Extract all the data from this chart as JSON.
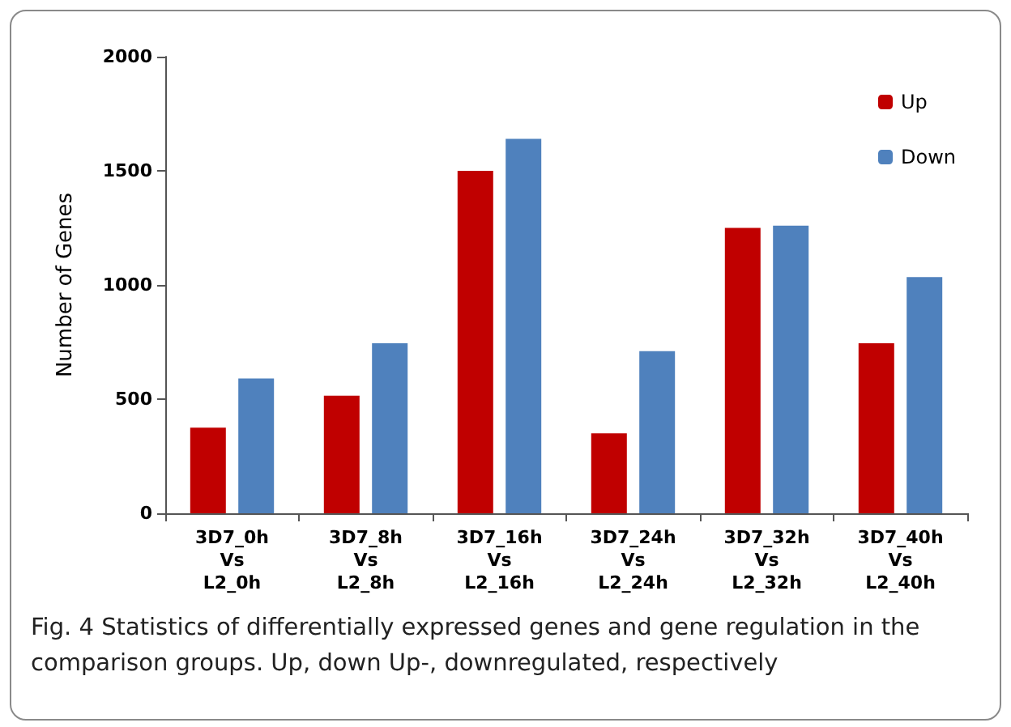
{
  "chart_data": {
    "type": "bar",
    "categories": [
      "3D7_0h\nVs\nL2_0h",
      "3D7_8h\nVs\nL2_8h",
      "3D7_16h\nVs\nL2_16h",
      "3D7_24h\nVs\nL2_24h",
      "3D7_32h\nVs\nL2_32h",
      "3D7_40h\nVs\nL2_40h"
    ],
    "series": [
      {
        "name": "Up",
        "color": "#c00000",
        "values": [
          375,
          515,
          1500,
          350,
          1250,
          745
        ]
      },
      {
        "name": "Down",
        "color": "#4f81bd",
        "values": [
          590,
          745,
          1640,
          710,
          1260,
          1035
        ]
      }
    ],
    "ylabel": "Number of Genes",
    "ylim": [
      0,
      2000
    ],
    "yticks": [
      0,
      500,
      1000,
      1500,
      2000
    ],
    "grid": false,
    "legend": "top right",
    "annotations": [
      "Fig. 4  Statistics of differentially expressed genes and gene regulation in the comparison groups. Up, down Up-, downregulated, respectively"
    ]
  }
}
